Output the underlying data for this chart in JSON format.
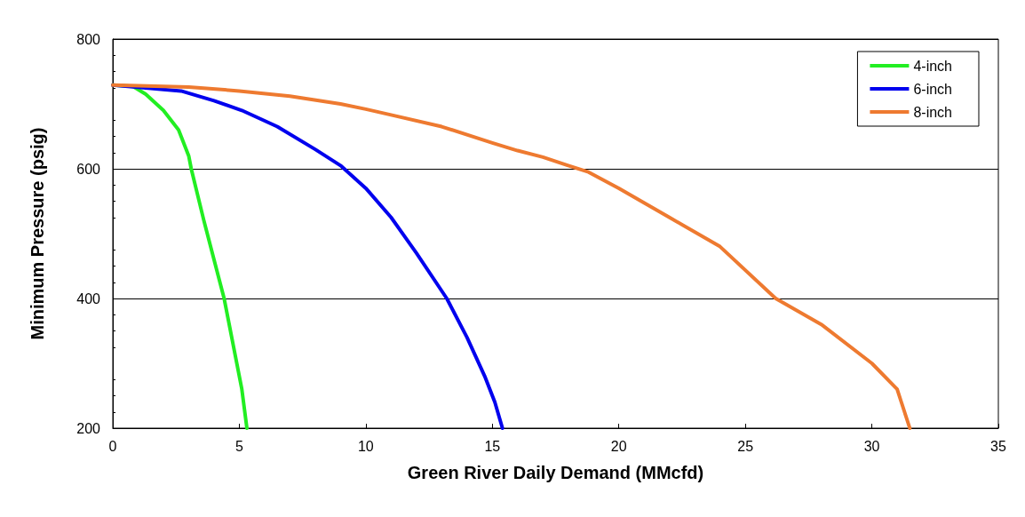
{
  "chart_data": {
    "type": "line",
    "xlabel": "Green River Daily Demand (MMcfd)",
    "ylabel": "Minimum Pressure (psig)",
    "xlim": [
      0,
      35
    ],
    "xticks": [
      0,
      5,
      10,
      15,
      20,
      25,
      30,
      35
    ],
    "ylim": [
      200,
      800
    ],
    "yticks": [
      200,
      400,
      600,
      800
    ],
    "grid": "y",
    "legend": "top right",
    "marker": "none",
    "line_style": "solid",
    "series": [
      {
        "name": "4-inch",
        "color": "#22ee22",
        "x": [
          0,
          0.8,
          1.3,
          2,
          2.6,
          3,
          3.1,
          3.6,
          4,
          4.4,
          4.8,
          5.1,
          5.3
        ],
        "values": [
          729,
          727,
          715,
          690,
          660,
          620,
          600,
          520,
          460,
          400,
          320,
          260,
          200
        ]
      },
      {
        "name": "6-inch",
        "color": "#0000ee",
        "x": [
          0,
          2.7,
          4,
          5.1,
          6.5,
          8,
          9,
          10,
          11,
          12,
          13.2,
          14,
          14.7,
          15.1,
          15.4
        ],
        "values": [
          729,
          720,
          705,
          690,
          665,
          630,
          605,
          570,
          525,
          470,
          400,
          340,
          280,
          240,
          200
        ]
      },
      {
        "name": "8-inch",
        "color": "#ee7a30",
        "x": [
          0,
          3,
          5,
          7,
          9,
          10,
          11,
          13,
          15,
          16,
          17,
          18,
          18.8,
          20,
          22,
          24,
          26.2,
          28,
          30,
          31,
          31.5
        ],
        "values": [
          729,
          726,
          720,
          712,
          700,
          692,
          683,
          665,
          640,
          628,
          618,
          605,
          595,
          570,
          525,
          480,
          400,
          360,
          300,
          260,
          200
        ]
      }
    ]
  }
}
